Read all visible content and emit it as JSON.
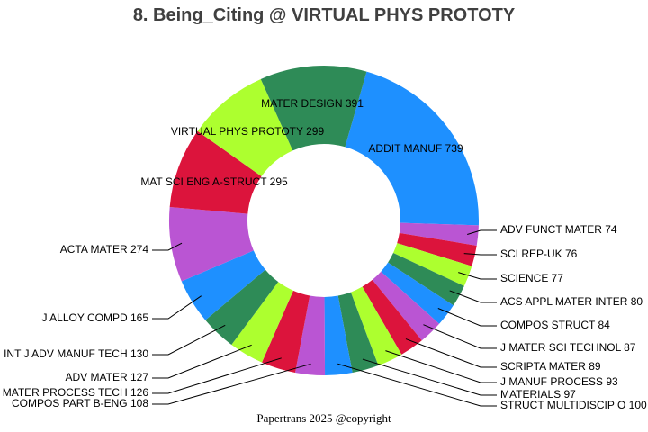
{
  "header": {
    "title": "8. Being_Citing @ VIRTUAL PHYS PROTOTY"
  },
  "footer": {
    "text": "Papertrans 2025 @copyright"
  },
  "colors": {
    "blue": "#1e90ff",
    "purple": "#ba55d3",
    "red": "#dc143c",
    "lime": "#adff2f",
    "green": "#2e8b57"
  },
  "chart_data": {
    "type": "pie",
    "donut": true,
    "title": "8. Being_Citing @ VIRTUAL PHYS PROTOTY",
    "start_angle_deg_clockwise_from_top": 16,
    "slices": [
      {
        "label": "ADDIT MANUF",
        "value": 739,
        "color": "#1e90ff",
        "label_inside": true
      },
      {
        "label": "ADV FUNCT MATER",
        "value": 74,
        "color": "#ba55d3"
      },
      {
        "label": "SCI REP-UK",
        "value": 76,
        "color": "#dc143c"
      },
      {
        "label": "SCIENCE",
        "value": 77,
        "color": "#adff2f"
      },
      {
        "label": "ACS APPL MATER INTER",
        "value": 80,
        "color": "#2e8b57"
      },
      {
        "label": "COMPOS STRUCT",
        "value": 84,
        "color": "#1e90ff"
      },
      {
        "label": "J MATER SCI TECHNOL",
        "value": 87,
        "color": "#ba55d3"
      },
      {
        "label": "SCRIPTA MATER",
        "value": 89,
        "color": "#dc143c"
      },
      {
        "label": "J MANUF PROCESS",
        "value": 93,
        "color": "#adff2f"
      },
      {
        "label": "MATERIALS",
        "value": 97,
        "color": "#2e8b57"
      },
      {
        "label": "STRUCT MULTIDISCIP O",
        "value": 100,
        "color": "#1e90ff"
      },
      {
        "label": "COMPOS PART B-ENG",
        "value": 108,
        "color": "#ba55d3"
      },
      {
        "label": "MATER PROCESS TECH",
        "value": 126,
        "color": "#dc143c"
      },
      {
        "label": "ADV MATER",
        "value": 127,
        "color": "#adff2f"
      },
      {
        "label": "INT J ADV MANUF TECH",
        "value": 130,
        "color": "#2e8b57"
      },
      {
        "label": "J ALLOY COMPD",
        "value": 165,
        "color": "#1e90ff"
      },
      {
        "label": "ACTA MATER",
        "value": 274,
        "color": "#ba55d3"
      },
      {
        "label": "MAT SCI ENG A-STRUCT",
        "value": 295,
        "color": "#dc143c",
        "label_inside": true
      },
      {
        "label": "VIRTUAL PHYS PROTOTY",
        "value": 299,
        "color": "#adff2f",
        "label_inside": true
      },
      {
        "label": "MATER DESIGN",
        "value": 391,
        "color": "#2e8b57",
        "label_inside": true
      }
    ],
    "label_positions": {
      "ADDIT MANUF": [
        462,
        166,
        "middle"
      ],
      "MATER DESIGN": [
        347,
        116,
        "middle"
      ],
      "VIRTUAL PHYS PROTOTY": [
        275,
        147,
        "middle"
      ],
      "MAT SCI ENG A-STRUCT": [
        238,
        203,
        "middle"
      ],
      "ADV FUNCT MATER": [
        556,
        256,
        "start"
      ],
      "SCI REP-UK": [
        556,
        283,
        "start"
      ],
      "SCIENCE": [
        556,
        310,
        "start"
      ],
      "ACS APPL MATER INTER": [
        556,
        336,
        "start"
      ],
      "COMPOS STRUCT": [
        556,
        362,
        "start"
      ],
      "J MATER SCI TECHNOL": [
        556,
        387,
        "start"
      ],
      "SCRIPTA MATER": [
        556,
        408,
        "start"
      ],
      "J MANUF PROCESS": [
        556,
        425,
        "start"
      ],
      "MATERIALS": [
        556,
        439,
        "start"
      ],
      "STRUCT MULTIDISCIP O": [
        556,
        451,
        "start"
      ],
      "ACTA MATER": [
        165,
        278,
        "end"
      ],
      "J ALLOY COMPD": [
        165,
        354,
        "end"
      ],
      "INT J ADV MANUF TECH": [
        165,
        394,
        "end"
      ],
      "ADV MATER": [
        165,
        420,
        "end"
      ],
      "MATER PROCESS TECH": [
        165,
        437,
        "end"
      ],
      "COMPOS PART B-ENG": [
        165,
        449,
        "end"
      ]
    }
  }
}
